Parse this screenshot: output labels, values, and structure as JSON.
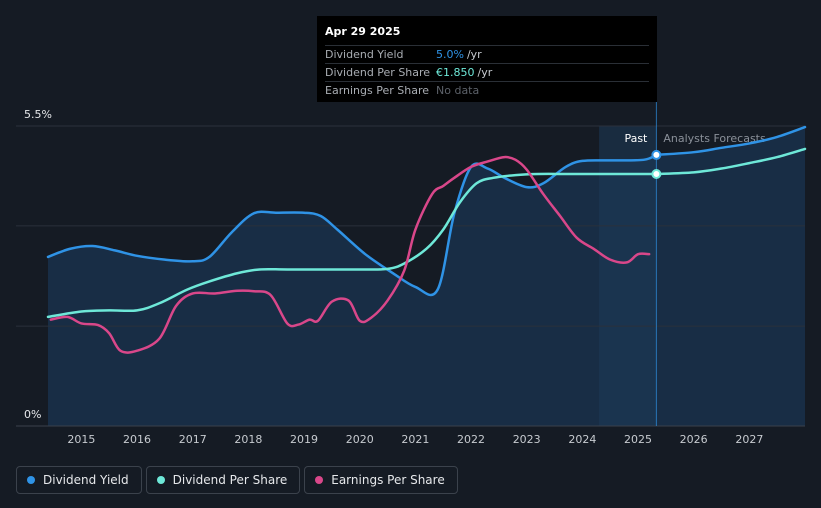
{
  "tooltip": {
    "date": "Apr 29 2025",
    "rows": [
      {
        "label": "Dividend Yield",
        "value": "5.0%",
        "unit": "/yr"
      },
      {
        "label": "Dividend Per Share",
        "value": "€1.850",
        "unit": "/yr"
      },
      {
        "label": "Earnings Per Share",
        "value": "No data",
        "unit": ""
      }
    ]
  },
  "legend": [
    {
      "label": "Dividend Yield",
      "color": "#2f93e6"
    },
    {
      "label": "Dividend Per Share",
      "color": "#6ee8d8"
    },
    {
      "label": "Earnings Per Share",
      "color": "#d9478a"
    }
  ],
  "chart_data": {
    "type": "line",
    "y_ticks": [
      {
        "value": 5.5,
        "label": "5.5%"
      },
      {
        "value": 0,
        "label": "0%"
      }
    ],
    "ylim": [
      0,
      5.5
    ],
    "xlim": [
      2014.4,
      2028.0
    ],
    "x_ticks": [
      "2015",
      "2016",
      "2017",
      "2018",
      "2019",
      "2020",
      "2021",
      "2022",
      "2023",
      "2024",
      "2025",
      "2026",
      "2027"
    ],
    "past_label": "Past",
    "forecast_label": "Analysts Forecasts",
    "divider_x": 2025.33,
    "highlight_start_x": 2024.3,
    "series": [
      {
        "name": "Dividend Yield",
        "color": "#2f93e6",
        "x": [
          2014.4,
          2014.8,
          2015.2,
          2015.6,
          2016.0,
          2016.5,
          2017.0,
          2017.3,
          2017.7,
          2018.1,
          2018.5,
          2019.0,
          2019.3,
          2019.6,
          2020.1,
          2020.6,
          2021.0,
          2021.4,
          2021.7,
          2022.0,
          2022.3,
          2022.6,
          2023.0,
          2023.3,
          2023.7,
          2024.0,
          2024.5,
          2025.1,
          2025.33
        ],
        "y": [
          3.1,
          3.25,
          3.3,
          3.22,
          3.12,
          3.05,
          3.02,
          3.1,
          3.55,
          3.9,
          3.91,
          3.91,
          3.85,
          3.6,
          3.15,
          2.8,
          2.55,
          2.5,
          3.9,
          4.75,
          4.72,
          4.55,
          4.38,
          4.45,
          4.75,
          4.86,
          4.87,
          4.88,
          4.97
        ]
      },
      {
        "name": "Dividend Per Share",
        "color": "#6ee8d8",
        "x": [
          2014.4,
          2015.0,
          2015.5,
          2016.0,
          2016.4,
          2016.9,
          2017.3,
          2017.8,
          2018.2,
          2018.7,
          2019.5,
          2020.0,
          2020.5,
          2020.8,
          2021.2,
          2021.5,
          2021.8,
          2022.1,
          2022.4,
          2022.8,
          2023.2,
          2023.8,
          2024.5,
          2025.0,
          2025.33
        ],
        "y": [
          2.0,
          2.1,
          2.12,
          2.12,
          2.25,
          2.5,
          2.65,
          2.8,
          2.87,
          2.87,
          2.87,
          2.87,
          2.88,
          2.98,
          3.25,
          3.6,
          4.1,
          4.45,
          4.55,
          4.6,
          4.62,
          4.62,
          4.62,
          4.62,
          4.62
        ]
      },
      {
        "name": "Earnings Per Share",
        "color": "#d9478a",
        "x": [
          2014.45,
          2014.75,
          2015.0,
          2015.3,
          2015.5,
          2015.7,
          2016.0,
          2016.4,
          2016.7,
          2017.0,
          2017.4,
          2017.8,
          2018.1,
          2018.4,
          2018.7,
          2018.9,
          2019.1,
          2019.25,
          2019.5,
          2019.8,
          2020.0,
          2020.2,
          2020.5,
          2020.8,
          2021.0,
          2021.3,
          2021.5,
          2021.7,
          2022.0,
          2022.3,
          2022.6,
          2022.8,
          2023.0,
          2023.3,
          2023.6,
          2023.9,
          2024.2,
          2024.5,
          2024.8,
          2025.0,
          2025.2
        ],
        "y": [
          1.95,
          2.0,
          1.88,
          1.85,
          1.7,
          1.38,
          1.38,
          1.6,
          2.2,
          2.43,
          2.43,
          2.48,
          2.47,
          2.4,
          1.88,
          1.86,
          1.95,
          1.93,
          2.28,
          2.3,
          1.93,
          1.98,
          2.3,
          2.85,
          3.6,
          4.25,
          4.4,
          4.55,
          4.75,
          4.85,
          4.93,
          4.88,
          4.7,
          4.25,
          3.85,
          3.45,
          3.25,
          3.05,
          3.0,
          3.15,
          3.15
        ]
      },
      {
        "name": "Dividend Yield",
        "color": "#2f93e6",
        "forecast": true,
        "x": [
          2025.33,
          2026.0,
          2026.5,
          2027.0,
          2027.5,
          2028.0
        ],
        "y": [
          4.97,
          5.02,
          5.1,
          5.18,
          5.3,
          5.48
        ]
      },
      {
        "name": "Dividend Per Share",
        "color": "#6ee8d8",
        "forecast": true,
        "x": [
          2025.33,
          2026.0,
          2026.5,
          2027.0,
          2027.5,
          2028.0
        ],
        "y": [
          4.62,
          4.65,
          4.72,
          4.82,
          4.93,
          5.08
        ]
      }
    ]
  }
}
